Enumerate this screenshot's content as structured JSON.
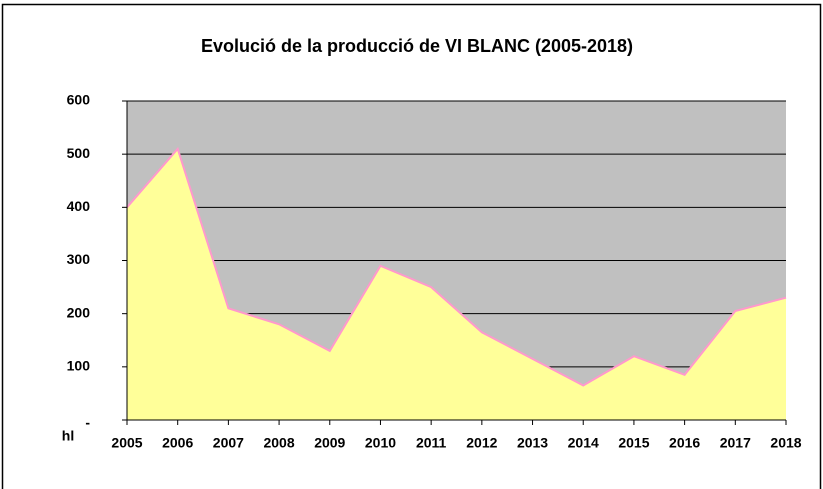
{
  "chart_data": {
    "type": "area",
    "title": "Evolució de la producció de VI BLANC (2005-2018)",
    "y_label": "hl",
    "categories": [
      "2005",
      "2006",
      "2007",
      "2008",
      "2009",
      "2010",
      "2011",
      "2012",
      "2013",
      "2014",
      "2015",
      "2016",
      "2017",
      "2018"
    ],
    "values": [
      400,
      510,
      210,
      180,
      130,
      290,
      250,
      165,
      115,
      65,
      120,
      85,
      205,
      230
    ],
    "color": "#ffff99",
    "line_color": "#ff99cc",
    "plot_background": "#c0c0c0",
    "ylim": [
      0,
      600
    ],
    "yticks": [
      {
        "value": 0,
        "label": "-"
      },
      100,
      200,
      300,
      400,
      500,
      600
    ],
    "grid": true
  }
}
